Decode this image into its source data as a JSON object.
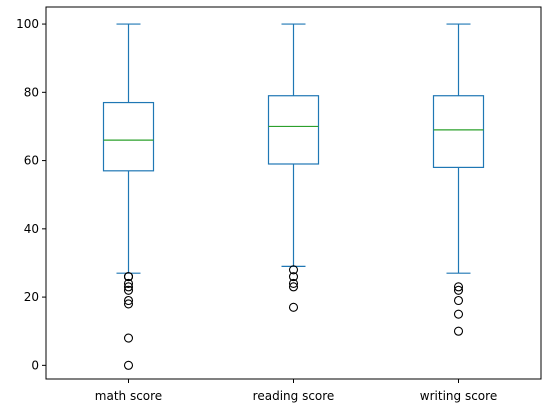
{
  "chart_data": {
    "type": "box",
    "title": "",
    "xlabel": "",
    "ylabel": "",
    "ylim": [
      -4,
      105
    ],
    "yticks": [
      0,
      20,
      40,
      60,
      80,
      100
    ],
    "ytick_labels": [
      "0",
      "20",
      "40",
      "60",
      "80",
      "100"
    ],
    "grid": false,
    "colors": {
      "box": "#1f77b4",
      "median": "#2ca02c",
      "flier": "#000000",
      "frame": "#000000"
    },
    "categories": [
      "math score",
      "reading score",
      "writing score"
    ],
    "series": [
      {
        "category": "math score",
        "whisker_low": 27,
        "q1": 57,
        "median": 66,
        "q3": 77,
        "whisker_high": 100,
        "outliers": [
          26,
          26,
          24,
          23,
          22,
          19,
          18,
          8,
          0
        ]
      },
      {
        "category": "reading score",
        "whisker_low": 29,
        "q1": 59,
        "median": 70,
        "q3": 79,
        "whisker_high": 100,
        "outliers": [
          28,
          26,
          24,
          23,
          17
        ]
      },
      {
        "category": "writing score",
        "whisker_low": 27,
        "q1": 58,
        "median": 69,
        "q3": 79,
        "whisker_high": 100,
        "outliers": [
          23,
          22,
          19,
          15,
          10
        ]
      }
    ]
  }
}
